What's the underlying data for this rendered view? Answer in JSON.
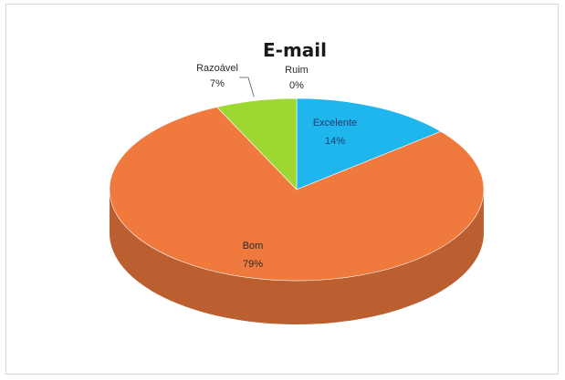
{
  "chart_data": {
    "type": "pie",
    "title": "E-mail",
    "three_d": true,
    "legend": "none",
    "categories": [
      "Excelente",
      "Bom",
      "Razoável",
      "Ruim"
    ],
    "values": [
      14,
      79,
      7,
      0
    ],
    "labels": [
      "14%",
      "79%",
      "7%",
      "0%"
    ],
    "colors": {
      "Excelente": "#1fb6ee",
      "Bom": "#f07a3e",
      "Razoável": "#9ed632",
      "Ruim": "#6a3fa0"
    }
  }
}
